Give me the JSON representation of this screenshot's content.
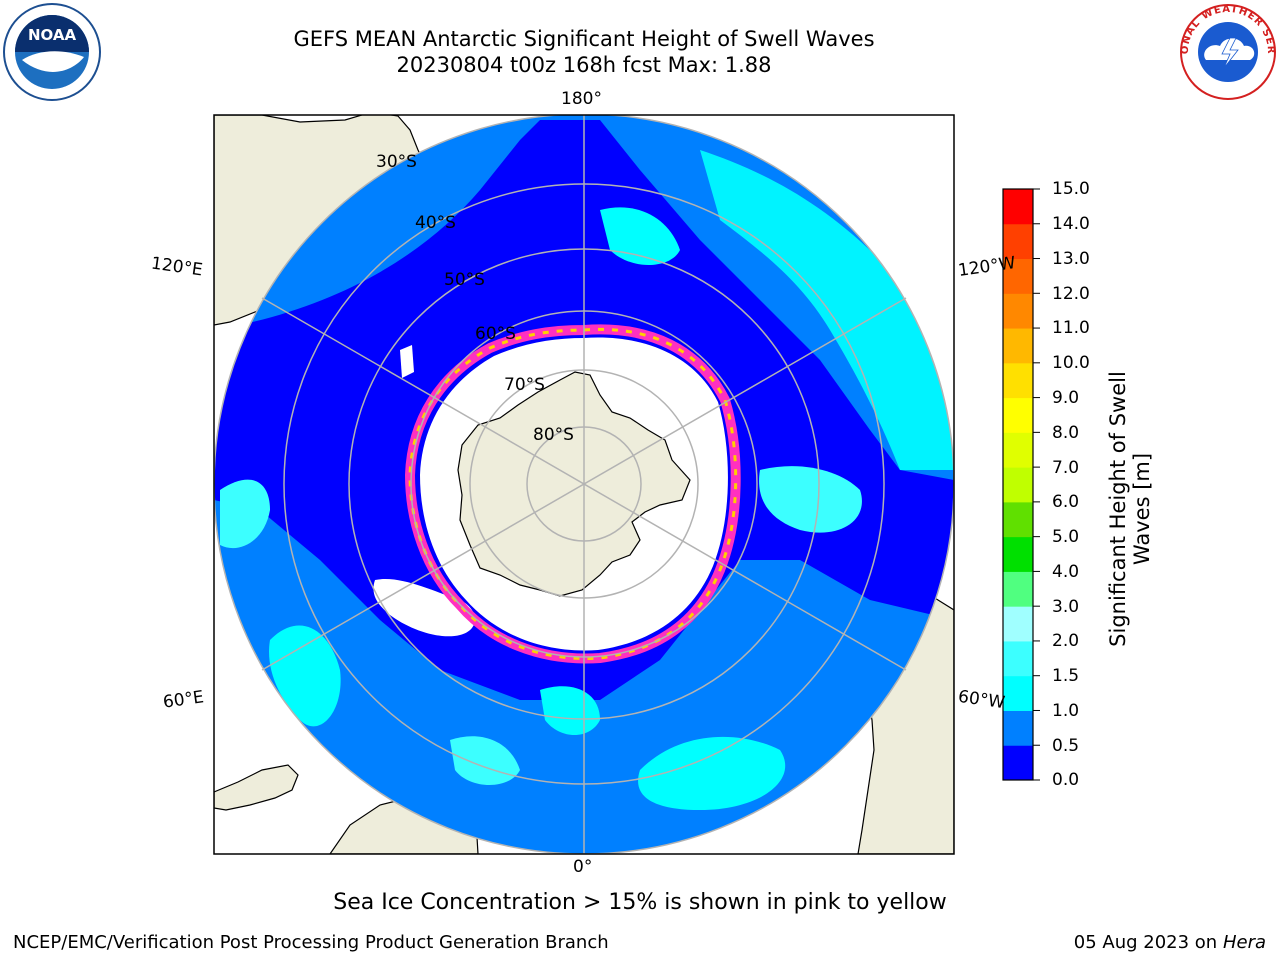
{
  "title": {
    "line1": "GEFS MEAN Antarctic Significant Height of Swell Waves",
    "line2": "20230804 t00z 168h fcst   Max: 1.88"
  },
  "map": {
    "projection": "south-polar-stereographic",
    "longitude_labels": [
      "180°",
      "120°E",
      "120°W",
      "60°E",
      "60°W",
      "0°"
    ],
    "latitude_labels": [
      "30°S",
      "40°S",
      "50°S",
      "60°S",
      "70°S",
      "80°S"
    ],
    "colors": {
      "land": "#eeeddb",
      "coastline": "#000000",
      "grid": "#b3b3b3",
      "ocean_0_0.5": "#0000ff",
      "ocean_0.5_1.0": "#0080ff",
      "ocean_1.0_1.5": "#00ffff",
      "ocean_1.5_2.0": "#3cffff",
      "sea_ice_edge_pink": "#ff30c0",
      "sea_ice_edge_yellow": "#ffd000",
      "sea_ice": "#ffffff"
    }
  },
  "colorbar": {
    "label": "Significant Height of Swell Waves [m]",
    "ticks": [
      "0.0",
      "0.5",
      "1.0",
      "1.5",
      "2.0",
      "3.0",
      "4.0",
      "5.0",
      "6.0",
      "7.0",
      "8.0",
      "9.0",
      "10.0",
      "11.0",
      "12.0",
      "13.0",
      "14.0",
      "15.0"
    ],
    "colors": [
      "#0000ff",
      "#0080ff",
      "#00ffff",
      "#3cffff",
      "#a0ffff",
      "#50ff80",
      "#00e000",
      "#60e000",
      "#c0ff00",
      "#e0ff00",
      "#ffff00",
      "#ffe000",
      "#ffb800",
      "#ff8800",
      "#ff6600",
      "#ff4000",
      "#ff0000"
    ]
  },
  "sea_ice_note": "Sea Ice Concentration > 15% is shown in pink to yellow",
  "credit": "NCEP/EMC/Verification Post Processing Product Generation Branch",
  "date_stamp": {
    "date": "05 Aug 2023 on",
    "host": "Hera"
  },
  "logos": {
    "noaa": "NOAA",
    "nws": "NATIONAL WEATHER SERVICE"
  }
}
